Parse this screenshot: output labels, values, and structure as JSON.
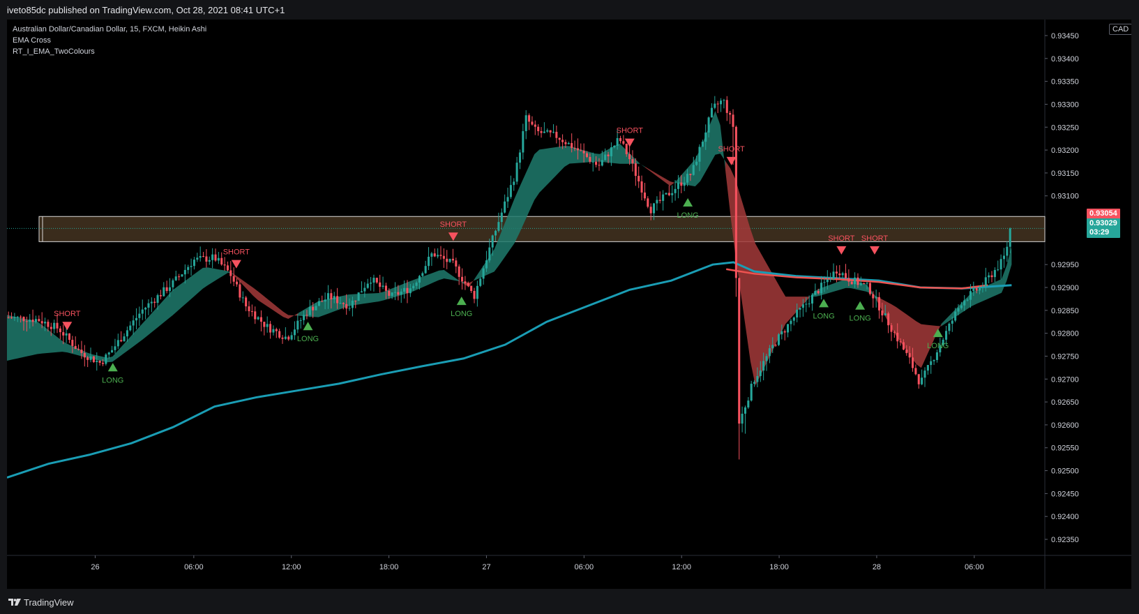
{
  "header": {
    "published": "iveto85dc published on TradingView.com, Oct 28, 2021 08:41 UTC+1"
  },
  "legend": {
    "symbol": "Australian Dollar/Canadian Dollar, 15, FXCM, Heikin Ashi",
    "indicator1": "EMA Cross",
    "indicator2": "RT_I_EMA_TwoColours"
  },
  "currency": "CAD",
  "last_price": {
    "value": "0.93054",
    "color": "#f7525f"
  },
  "current_price": {
    "value": "0.93029",
    "countdown": "03:29",
    "color": "#26a69a"
  },
  "footer": {
    "brand": "TradingView"
  },
  "colors": {
    "bull": "#26a69a",
    "bear": "#f7525f",
    "ribbon_bull": "#1f7a6c",
    "ribbon_bear": "#a33a3a",
    "long_signal": "#4caf50",
    "short_signal": "#f7525f",
    "ema_slow": "#1a9db4",
    "ema_red": "#ef5350",
    "zone_fill": "#3a2c1c",
    "zone_border": "#d9d9d9"
  },
  "chart_data": {
    "type": "candlestick",
    "title": "Australian Dollar/Canadian Dollar, 15, FXCM, Heikin Ashi",
    "y_ticks": [
      "0.93450",
      "0.93400",
      "0.93350",
      "0.93300",
      "0.93250",
      "0.93200",
      "0.93150",
      "0.93100",
      "0.92950",
      "0.92900",
      "0.92850",
      "0.92800",
      "0.92750",
      "0.92700",
      "0.92650",
      "0.92600",
      "0.92550",
      "0.92500",
      "0.92450",
      "0.92400",
      "0.92350"
    ],
    "ylim": [
      0.92315,
      0.93485
    ],
    "x_ticks": [
      {
        "label": "26",
        "pos": 0.085
      },
      {
        "label": "06:00",
        "pos": 0.18
      },
      {
        "label": "12:00",
        "pos": 0.274
      },
      {
        "label": "18:00",
        "pos": 0.368
      },
      {
        "label": "27",
        "pos": 0.462
      },
      {
        "label": "06:00",
        "pos": 0.556
      },
      {
        "label": "12:00",
        "pos": 0.65
      },
      {
        "label": "18:00",
        "pos": 0.744
      },
      {
        "label": "28",
        "pos": 0.838
      },
      {
        "label": "06:00",
        "pos": 0.932
      }
    ],
    "zone": {
      "top": 0.93055,
      "bottom": 0.93
    },
    "signals": [
      {
        "type": "SHORT",
        "x": 0.058,
        "price": 0.92825
      },
      {
        "type": "LONG",
        "x": 0.102,
        "price": 0.92735
      },
      {
        "type": "SHORT",
        "x": 0.221,
        "price": 0.9296
      },
      {
        "type": "LONG",
        "x": 0.29,
        "price": 0.92825
      },
      {
        "type": "SHORT",
        "x": 0.43,
        "price": 0.9302
      },
      {
        "type": "LONG",
        "x": 0.438,
        "price": 0.9288
      },
      {
        "type": "SHORT",
        "x": 0.6,
        "price": 0.93225
      },
      {
        "type": "LONG",
        "x": 0.656,
        "price": 0.93095
      },
      {
        "type": "SHORT",
        "x": 0.698,
        "price": 0.93185
      },
      {
        "type": "SHORT",
        "x": 0.804,
        "price": 0.9299
      },
      {
        "type": "LONG",
        "x": 0.787,
        "price": 0.92875
      },
      {
        "type": "SHORT",
        "x": 0.836,
        "price": 0.9299
      },
      {
        "type": "LONG",
        "x": 0.822,
        "price": 0.9287
      },
      {
        "type": "LONG",
        "x": 0.897,
        "price": 0.9281
      }
    ],
    "ema_slow": [
      [
        0.0,
        0.92485
      ],
      [
        0.04,
        0.92515
      ],
      [
        0.08,
        0.92535
      ],
      [
        0.12,
        0.9256
      ],
      [
        0.16,
        0.92595
      ],
      [
        0.2,
        0.9264
      ],
      [
        0.24,
        0.9266
      ],
      [
        0.28,
        0.92675
      ],
      [
        0.32,
        0.9269
      ],
      [
        0.36,
        0.9271
      ],
      [
        0.4,
        0.92728
      ],
      [
        0.44,
        0.92745
      ],
      [
        0.48,
        0.92775
      ],
      [
        0.52,
        0.92825
      ],
      [
        0.56,
        0.9286
      ],
      [
        0.6,
        0.92895
      ],
      [
        0.64,
        0.92915
      ],
      [
        0.68,
        0.9295
      ],
      [
        0.7,
        0.92955
      ],
      [
        0.72,
        0.92935
      ],
      [
        0.76,
        0.92925
      ],
      [
        0.8,
        0.9292
      ],
      [
        0.84,
        0.92915
      ],
      [
        0.88,
        0.929
      ],
      [
        0.92,
        0.92898
      ],
      [
        0.968,
        0.92905
      ]
    ],
    "ema_red": [
      [
        0.693,
        0.9294
      ],
      [
        0.72,
        0.9293
      ],
      [
        0.76,
        0.92922
      ],
      [
        0.8,
        0.92918
      ],
      [
        0.84,
        0.92912
      ],
      [
        0.88,
        0.929
      ],
      [
        0.92,
        0.92898
      ],
      [
        0.945,
        0.92905
      ]
    ],
    "ribbon_fast": [
      [
        0.0,
        0.9284
      ],
      [
        0.03,
        0.92825
      ],
      [
        0.055,
        0.9278
      ],
      [
        0.08,
        0.92755
      ],
      [
        0.1,
        0.92745
      ],
      [
        0.13,
        0.9282
      ],
      [
        0.16,
        0.92895
      ],
      [
        0.19,
        0.92945
      ],
      [
        0.215,
        0.92935
      ],
      [
        0.24,
        0.92875
      ],
      [
        0.27,
        0.9283
      ],
      [
        0.3,
        0.9287
      ],
      [
        0.33,
        0.92885
      ],
      [
        0.36,
        0.92888
      ],
      [
        0.39,
        0.92915
      ],
      [
        0.42,
        0.9294
      ],
      [
        0.445,
        0.929
      ],
      [
        0.47,
        0.92985
      ],
      [
        0.49,
        0.931
      ],
      [
        0.51,
        0.932
      ],
      [
        0.54,
        0.9321
      ],
      [
        0.57,
        0.9319
      ],
      [
        0.59,
        0.93215
      ],
      [
        0.61,
        0.9317
      ],
      [
        0.64,
        0.9312
      ],
      [
        0.665,
        0.93185
      ],
      [
        0.685,
        0.933
      ],
      [
        0.7,
        0.93
      ],
      [
        0.72,
        0.9268
      ],
      [
        0.75,
        0.9282
      ],
      [
        0.78,
        0.92895
      ],
      [
        0.81,
        0.9292
      ],
      [
        0.83,
        0.92905
      ],
      [
        0.855,
        0.928
      ],
      [
        0.88,
        0.9272
      ],
      [
        0.9,
        0.9282
      ],
      [
        0.93,
        0.9289
      ],
      [
        0.96,
        0.9292
      ],
      [
        0.968,
        0.9299
      ]
    ],
    "ribbon_slow": [
      [
        0.0,
        0.9274
      ],
      [
        0.03,
        0.92755
      ],
      [
        0.055,
        0.9276
      ],
      [
        0.08,
        0.92745
      ],
      [
        0.1,
        0.92735
      ],
      [
        0.13,
        0.92785
      ],
      [
        0.16,
        0.9284
      ],
      [
        0.19,
        0.929
      ],
      [
        0.215,
        0.92935
      ],
      [
        0.24,
        0.92895
      ],
      [
        0.27,
        0.9284
      ],
      [
        0.3,
        0.92835
      ],
      [
        0.33,
        0.9286
      ],
      [
        0.36,
        0.9287
      ],
      [
        0.39,
        0.9289
      ],
      [
        0.42,
        0.9292
      ],
      [
        0.445,
        0.9291
      ],
      [
        0.47,
        0.92935
      ],
      [
        0.49,
        0.93
      ],
      [
        0.51,
        0.931
      ],
      [
        0.54,
        0.9317
      ],
      [
        0.57,
        0.93175
      ],
      [
        0.59,
        0.9317
      ],
      [
        0.61,
        0.9317
      ],
      [
        0.64,
        0.9313
      ],
      [
        0.665,
        0.9312
      ],
      [
        0.685,
        0.932
      ],
      [
        0.7,
        0.9315
      ],
      [
        0.72,
        0.93
      ],
      [
        0.75,
        0.9288
      ],
      [
        0.78,
        0.9288
      ],
      [
        0.81,
        0.929
      ],
      [
        0.83,
        0.9289
      ],
      [
        0.855,
        0.9286
      ],
      [
        0.88,
        0.9282
      ],
      [
        0.9,
        0.92815
      ],
      [
        0.93,
        0.9286
      ],
      [
        0.96,
        0.9289
      ],
      [
        0.968,
        0.9295
      ]
    ],
    "price_path": [
      [
        0.0,
        0.92835
      ],
      [
        0.03,
        0.9283
      ],
      [
        0.05,
        0.9281
      ],
      [
        0.07,
        0.9276
      ],
      [
        0.09,
        0.92735
      ],
      [
        0.1,
        0.9276
      ],
      [
        0.13,
        0.9285
      ],
      [
        0.16,
        0.9291
      ],
      [
        0.18,
        0.9296
      ],
      [
        0.2,
        0.92965
      ],
      [
        0.215,
        0.9293
      ],
      [
        0.23,
        0.9286
      ],
      [
        0.25,
        0.92815
      ],
      [
        0.27,
        0.9279
      ],
      [
        0.29,
        0.9285
      ],
      [
        0.31,
        0.9288
      ],
      [
        0.33,
        0.9286
      ],
      [
        0.35,
        0.9292
      ],
      [
        0.37,
        0.9288
      ],
      [
        0.39,
        0.929
      ],
      [
        0.41,
        0.92975
      ],
      [
        0.43,
        0.9295
      ],
      [
        0.45,
        0.9288
      ],
      [
        0.47,
        0.9302
      ],
      [
        0.49,
        0.9315
      ],
      [
        0.5,
        0.9327
      ],
      [
        0.51,
        0.9324
      ],
      [
        0.53,
        0.9323
      ],
      [
        0.55,
        0.932
      ],
      [
        0.57,
        0.93165
      ],
      [
        0.59,
        0.93225
      ],
      [
        0.6,
        0.9318
      ],
      [
        0.62,
        0.9307
      ],
      [
        0.64,
        0.9311
      ],
      [
        0.66,
        0.9315
      ],
      [
        0.68,
        0.9329
      ],
      [
        0.69,
        0.9331
      ],
      [
        0.7,
        0.9325
      ],
      [
        0.705,
        0.926
      ],
      [
        0.72,
        0.927
      ],
      [
        0.74,
        0.9278
      ],
      [
        0.76,
        0.9284
      ],
      [
        0.78,
        0.9289
      ],
      [
        0.8,
        0.9294
      ],
      [
        0.81,
        0.9292
      ],
      [
        0.83,
        0.929
      ],
      [
        0.85,
        0.9282
      ],
      [
        0.87,
        0.9274
      ],
      [
        0.88,
        0.9269
      ],
      [
        0.9,
        0.9278
      ],
      [
        0.92,
        0.9287
      ],
      [
        0.94,
        0.92905
      ],
      [
        0.96,
        0.9296
      ],
      [
        0.968,
        0.93029
      ]
    ]
  }
}
